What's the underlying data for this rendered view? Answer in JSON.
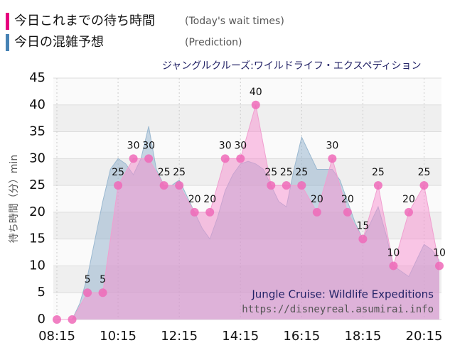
{
  "chart_data": {
    "type": "area",
    "title": "ジャングルクルーズ:ワイルドライフ・エクスペディション",
    "y_label": "待ち時間（分）min",
    "annotations": [
      "Jungle Cruise: Wildlife Expeditions",
      "https://disneyreal.asumirai.info"
    ],
    "xlim": [
      495,
      1245
    ],
    "xticks": [
      {
        "value": 495,
        "label": "08:15"
      },
      {
        "value": 615,
        "label": "10:15"
      },
      {
        "value": 735,
        "label": "12:15"
      },
      {
        "value": 855,
        "label": "14:15"
      },
      {
        "value": 975,
        "label": "16:15"
      },
      {
        "value": 1095,
        "label": "18:15"
      },
      {
        "value": 1215,
        "label": "20:15"
      }
    ],
    "ylim": [
      0,
      45
    ],
    "yticks": [
      0,
      5,
      10,
      15,
      20,
      25,
      30,
      35,
      40,
      45
    ],
    "grid": true,
    "series": [
      {
        "name": "今日これまでの待ち時間",
        "subname": "(Today's wait times)",
        "color": "#e6007e",
        "fill": "#f78fcf",
        "line": "#f0a0d0",
        "marker": "#ee6ab8",
        "x": [
          495,
          525,
          555,
          585,
          615,
          645,
          675,
          705,
          735,
          765,
          795,
          825,
          855,
          885,
          915,
          945,
          975,
          1005,
          1035,
          1065,
          1095,
          1125,
          1155,
          1185,
          1215,
          1245
        ],
        "values": [
          0,
          0,
          5,
          5,
          25,
          30,
          30,
          25,
          25,
          20,
          20,
          30,
          30,
          40,
          25,
          25,
          25,
          20,
          30,
          20,
          15,
          25,
          10,
          20,
          25,
          10
        ]
      },
      {
        "name": "今日の混雑予想",
        "subname": "(Prediction)",
        "color": "#4682b4",
        "fill": "#8fb0cc",
        "line": "#9ab8d0",
        "x": [
          495,
          510,
          525,
          540,
          555,
          570,
          585,
          600,
          615,
          630,
          645,
          660,
          675,
          690,
          705,
          720,
          735,
          750,
          765,
          780,
          795,
          810,
          825,
          840,
          855,
          870,
          885,
          900,
          915,
          930,
          945,
          960,
          975,
          990,
          1005,
          1020,
          1035,
          1050,
          1065,
          1080,
          1095,
          1110,
          1125,
          1140,
          1155,
          1170,
          1185,
          1200,
          1215,
          1230,
          1245
        ],
        "values": [
          0,
          0,
          0,
          3,
          8,
          15,
          22,
          28,
          30,
          29,
          27,
          30,
          36,
          28,
          25,
          25,
          26,
          23,
          20,
          17,
          15,
          19,
          24,
          27,
          29,
          29.5,
          29,
          28,
          25,
          22,
          21,
          28,
          34,
          31,
          28,
          28,
          28,
          26,
          22,
          18,
          15,
          18,
          21,
          16,
          10,
          9,
          8,
          11,
          14,
          13,
          11
        ]
      }
    ]
  }
}
